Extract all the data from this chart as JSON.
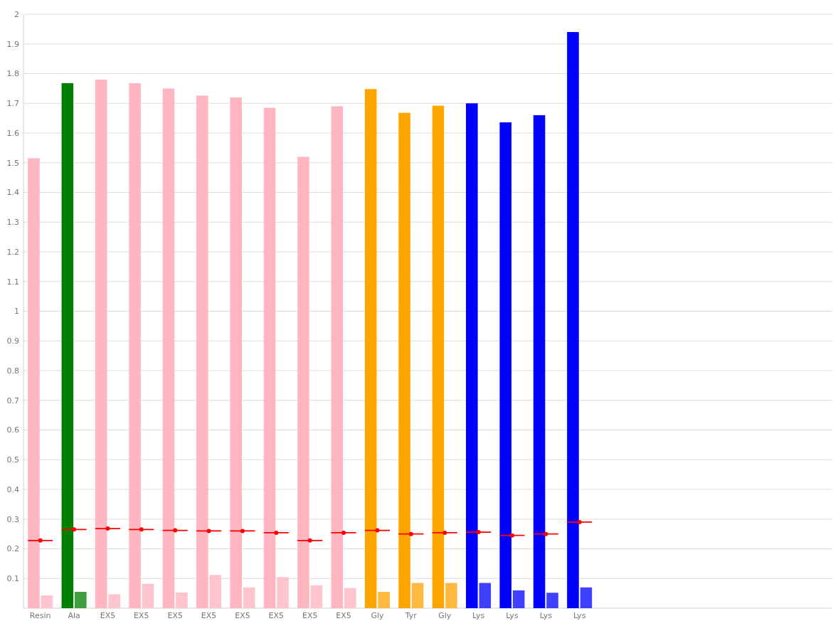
{
  "chart_data": {
    "type": "bar",
    "categories": [
      "Resin",
      "Ala",
      "EX5",
      "EX5",
      "EX5",
      "EX5",
      "EX5",
      "EX5",
      "EX5",
      "EX5",
      "Gly",
      "Tyr",
      "Gly",
      "Lys",
      "Lys",
      "Lys",
      "Lys",
      null,
      null,
      null,
      null,
      null,
      null,
      null
    ],
    "series": [
      {
        "colors": [
          "#ffb6c1",
          "#008000",
          "#ffb6c1",
          "#ffb6c1",
          "#ffb6c1",
          "#ffb6c1",
          "#ffb6c1",
          "#ffb6c1",
          "#ffb6c1",
          "#ffb6c1",
          "#ffa500",
          "#ffa500",
          "#ffa500",
          "#0000ff",
          "#0000ff",
          "#0000ff",
          "#0000ff",
          null,
          null,
          null,
          null,
          null,
          null,
          null
        ],
        "values": [
          1.515,
          1.768,
          1.78,
          1.768,
          1.75,
          1.726,
          1.72,
          1.685,
          1.52,
          1.69,
          1.748,
          1.668,
          1.692,
          1.7,
          1.636,
          1.66,
          1.94,
          null,
          null,
          null,
          null,
          null,
          null,
          null
        ]
      },
      {
        "colors": [
          "#ffc4cd",
          "#3f9f3f",
          "#ffc4cd",
          "#ffc4cd",
          "#ffc4cd",
          "#ffc4cd",
          "#ffc4cd",
          "#ffc4cd",
          "#ffc4cd",
          "#ffc4cd",
          "#ffb840",
          "#ffb840",
          "#ffb840",
          "#4040ff",
          "#4040ff",
          "#4040ff",
          "#4040ff",
          null,
          null,
          null,
          null,
          null,
          null,
          null
        ],
        "values": [
          0.043,
          0.055,
          0.047,
          0.082,
          0.053,
          0.112,
          0.07,
          0.105,
          0.077,
          0.068,
          0.055,
          0.085,
          0.085,
          0.085,
          0.06,
          0.052,
          0.07,
          null,
          null,
          null,
          null,
          null,
          null,
          null
        ]
      },
      {
        "type": "scatter",
        "color": "#ff0000",
        "marker": "circle",
        "values": [
          0.228,
          0.265,
          0.268,
          0.265,
          0.262,
          0.26,
          0.26,
          0.254,
          0.228,
          0.254,
          0.262,
          0.25,
          0.254,
          0.256,
          0.245,
          0.25,
          0.29,
          null,
          null,
          null,
          null,
          null,
          null,
          null
        ]
      }
    ],
    "ylim": [
      0,
      2
    ],
    "yticks": [
      0.1,
      0.2,
      0.3,
      0.4,
      0.5,
      0.6,
      0.7,
      0.8,
      0.9,
      1,
      1.1,
      1.2,
      1.3,
      1.4,
      1.5,
      1.6,
      1.7,
      1.8,
      1.9,
      2
    ],
    "grid": "y"
  }
}
